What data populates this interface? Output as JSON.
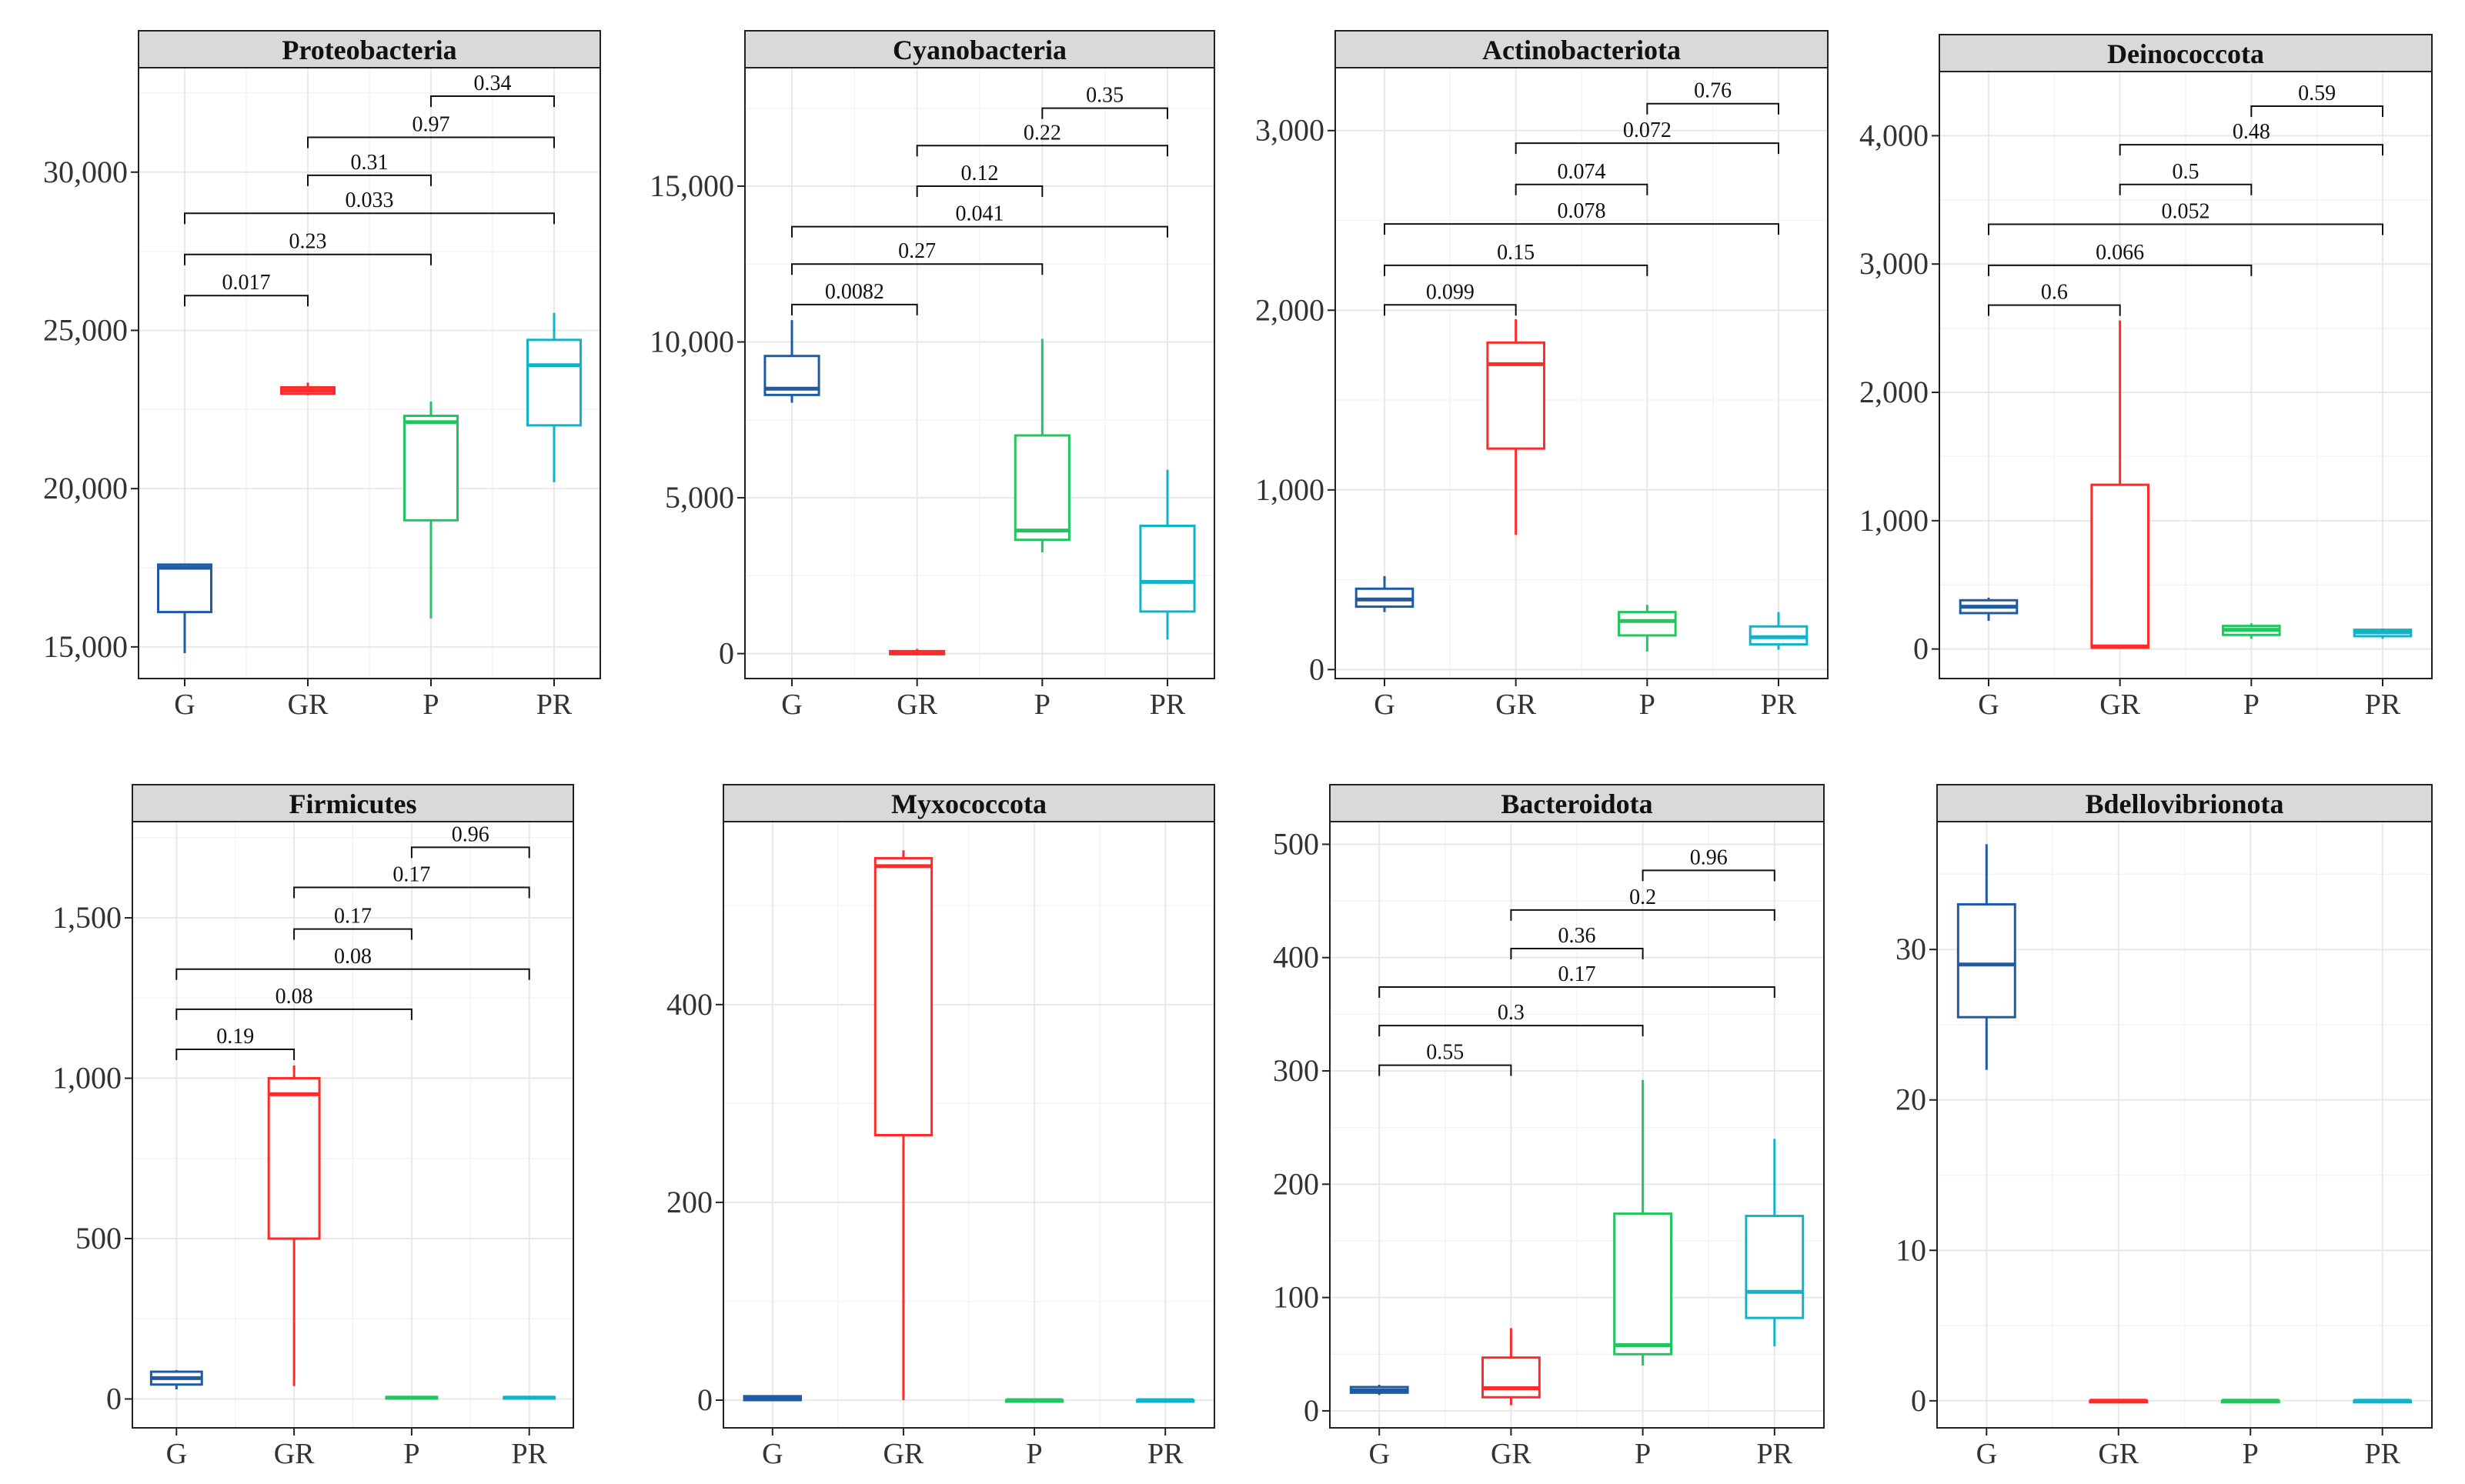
{
  "figure": {
    "columns": 4,
    "rows": 2
  },
  "colors": {
    "G": "#1f5aa6",
    "GR": "#ff2a2a",
    "P": "#22c55e",
    "PR": "#11b3c8",
    "strip_bg": "#d9d9d9",
    "grid_major": "#e8e8e8",
    "grid_minor": "#f3f3f3",
    "frame": "#222222",
    "bracket": "#111111"
  },
  "chart_data": [
    {
      "type": "box",
      "title": "Proteobacteria",
      "groups": [
        "G",
        "GR",
        "P",
        "PR"
      ],
      "ylim": [
        14000,
        33300
      ],
      "yticks": [
        15000,
        20000,
        25000,
        30000
      ],
      "ytick_labels": [
        "15,000",
        "20,000",
        "25,000",
        "30,000"
      ],
      "boxes": [
        {
          "group": "G",
          "min": 14800,
          "q1": 16100,
          "median": 17500,
          "q3": 17600,
          "max": 17600
        },
        {
          "group": "GR",
          "min": 22950,
          "q1": 23000,
          "median": 23100,
          "q3": 23200,
          "max": 23350
        },
        {
          "group": "P",
          "min": 15900,
          "q1": 19000,
          "median": 22100,
          "q3": 22300,
          "max": 22750
        },
        {
          "group": "PR",
          "min": 20200,
          "q1": 22000,
          "median": 23900,
          "q3": 24700,
          "max": 25550
        }
      ],
      "comparisons": [
        {
          "from": "G",
          "to": "GR",
          "p": "0.017",
          "y": 26100
        },
        {
          "from": "G",
          "to": "P",
          "p": "0.23",
          "y": 27400
        },
        {
          "from": "G",
          "to": "PR",
          "p": "0.033",
          "y": 28700
        },
        {
          "from": "GR",
          "to": "P",
          "p": "0.31",
          "y": 29900
        },
        {
          "from": "GR",
          "to": "PR",
          "p": "0.97",
          "y": 31100
        },
        {
          "from": "P",
          "to": "PR",
          "p": "0.34",
          "y": 32400
        }
      ]
    },
    {
      "type": "box",
      "title": "Cyanobacteria",
      "groups": [
        "G",
        "GR",
        "P",
        "PR"
      ],
      "ylim": [
        -800,
        18800
      ],
      "yticks": [
        0,
        5000,
        10000,
        15000
      ],
      "ytick_labels": [
        "0",
        "5,000",
        "10,000",
        "15,000"
      ],
      "boxes": [
        {
          "group": "G",
          "min": 8050,
          "q1": 8300,
          "median": 8500,
          "q3": 9550,
          "max": 10700
        },
        {
          "group": "GR",
          "min": -50,
          "q1": -20,
          "median": 20,
          "q3": 80,
          "max": 150
        },
        {
          "group": "P",
          "min": 3250,
          "q1": 3650,
          "median": 3950,
          "q3": 7000,
          "max": 10100
        },
        {
          "group": "PR",
          "min": 450,
          "q1": 1350,
          "median": 2300,
          "q3": 4100,
          "max": 5900
        }
      ],
      "comparisons": [
        {
          "from": "G",
          "to": "GR",
          "p": "0.0082",
          "y": 11200
        },
        {
          "from": "G",
          "to": "P",
          "p": "0.27",
          "y": 12500
        },
        {
          "from": "G",
          "to": "PR",
          "p": "0.041",
          "y": 13700
        },
        {
          "from": "GR",
          "to": "P",
          "p": "0.12",
          "y": 15000
        },
        {
          "from": "GR",
          "to": "PR",
          "p": "0.22",
          "y": 16300
        },
        {
          "from": "P",
          "to": "PR",
          "p": "0.35",
          "y": 17500
        }
      ]
    },
    {
      "type": "box",
      "title": "Actinobacteriota",
      "groups": [
        "G",
        "GR",
        "P",
        "PR"
      ],
      "ylim": [
        -50,
        3350
      ],
      "yticks": [
        0,
        1000,
        2000,
        3000
      ],
      "ytick_labels": [
        "0",
        "1,000",
        "2,000",
        "3,000"
      ],
      "boxes": [
        {
          "group": "G",
          "min": 320,
          "q1": 350,
          "median": 390,
          "q3": 450,
          "max": 520
        },
        {
          "group": "GR",
          "min": 750,
          "q1": 1230,
          "median": 1700,
          "q3": 1820,
          "max": 1950
        },
        {
          "group": "P",
          "min": 100,
          "q1": 190,
          "median": 270,
          "q3": 320,
          "max": 360
        },
        {
          "group": "PR",
          "min": 110,
          "q1": 140,
          "median": 180,
          "q3": 240,
          "max": 320
        }
      ],
      "comparisons": [
        {
          "from": "G",
          "to": "GR",
          "p": "0.099",
          "y": 2030
        },
        {
          "from": "G",
          "to": "P",
          "p": "0.15",
          "y": 2250
        },
        {
          "from": "G",
          "to": "PR",
          "p": "0.078",
          "y": 2480
        },
        {
          "from": "GR",
          "to": "P",
          "p": "0.074",
          "y": 2700
        },
        {
          "from": "GR",
          "to": "PR",
          "p": "0.072",
          "y": 2930
        },
        {
          "from": "P",
          "to": "PR",
          "p": "0.76",
          "y": 3150
        }
      ]
    },
    {
      "type": "box",
      "title": "Deinococcota",
      "groups": [
        "G",
        "GR",
        "P",
        "PR"
      ],
      "ylim": [
        -230,
        4500
      ],
      "yticks": [
        0,
        1000,
        2000,
        3000,
        4000
      ],
      "ytick_labels": [
        "0",
        "1,000",
        "2,000",
        "3,000",
        "4,000"
      ],
      "boxes": [
        {
          "group": "G",
          "min": 220,
          "q1": 280,
          "median": 330,
          "q3": 380,
          "max": 400
        },
        {
          "group": "GR",
          "min": 0,
          "q1": 10,
          "median": 20,
          "q3": 1280,
          "max": 2560
        },
        {
          "group": "P",
          "min": 80,
          "q1": 110,
          "median": 150,
          "q3": 180,
          "max": 200
        },
        {
          "group": "PR",
          "min": 80,
          "q1": 100,
          "median": 130,
          "q3": 150,
          "max": 160
        }
      ],
      "comparisons": [
        {
          "from": "G",
          "to": "GR",
          "p": "0.6",
          "y": 2680
        },
        {
          "from": "G",
          "to": "P",
          "p": "0.066",
          "y": 2990
        },
        {
          "from": "G",
          "to": "PR",
          "p": "0.052",
          "y": 3310
        },
        {
          "from": "GR",
          "to": "P",
          "p": "0.5",
          "y": 3620
        },
        {
          "from": "GR",
          "to": "PR",
          "p": "0.48",
          "y": 3930
        },
        {
          "from": "P",
          "to": "PR",
          "p": "0.59",
          "y": 4230
        }
      ]
    },
    {
      "type": "box",
      "title": "Firmicutes",
      "groups": [
        "G",
        "GR",
        "P",
        "PR"
      ],
      "ylim": [
        -90,
        1800
      ],
      "yticks": [
        0,
        500,
        1000,
        1500
      ],
      "ytick_labels": [
        "0",
        "500",
        "1,000",
        "1,500"
      ],
      "boxes": [
        {
          "group": "G",
          "min": 30,
          "q1": 45,
          "median": 65,
          "q3": 85,
          "max": 90
        },
        {
          "group": "GR",
          "min": 40,
          "q1": 500,
          "median": 950,
          "q3": 1000,
          "max": 1040
        },
        {
          "group": "P",
          "min": 0,
          "q1": 2,
          "median": 4,
          "q3": 6,
          "max": 8
        },
        {
          "group": "PR",
          "min": 0,
          "q1": 2,
          "median": 4,
          "q3": 6,
          "max": 8
        }
      ],
      "comparisons": [
        {
          "from": "G",
          "to": "GR",
          "p": "0.19",
          "y": 1090
        },
        {
          "from": "G",
          "to": "P",
          "p": "0.08",
          "y": 1215
        },
        {
          "from": "G",
          "to": "PR",
          "p": "0.08",
          "y": 1340
        },
        {
          "from": "GR",
          "to": "P",
          "p": "0.17",
          "y": 1465
        },
        {
          "from": "GR",
          "to": "PR",
          "p": "0.17",
          "y": 1595
        },
        {
          "from": "P",
          "to": "PR",
          "p": "0.96",
          "y": 1720
        }
      ]
    },
    {
      "type": "box",
      "title": "Myxococcota",
      "groups": [
        "G",
        "GR",
        "P",
        "PR"
      ],
      "ylim": [
        -28,
        585
      ],
      "yticks": [
        0,
        200,
        400
      ],
      "ytick_labels": [
        "0",
        "200",
        "400"
      ],
      "boxes": [
        {
          "group": "G",
          "min": 0,
          "q1": 0,
          "median": 2,
          "q3": 4,
          "max": 5
        },
        {
          "group": "GR",
          "min": 0,
          "q1": 268,
          "median": 540,
          "q3": 548,
          "max": 556
        },
        {
          "group": "P",
          "min": 0,
          "q1": 0,
          "median": 0,
          "q3": 0,
          "max": 0
        },
        {
          "group": "PR",
          "min": 0,
          "q1": 0,
          "median": 0,
          "q3": 0,
          "max": 0
        }
      ],
      "comparisons": []
    },
    {
      "type": "box",
      "title": "Bacteroidota",
      "groups": [
        "G",
        "GR",
        "P",
        "PR"
      ],
      "ylim": [
        -15,
        520
      ],
      "yticks": [
        0,
        100,
        200,
        300,
        400,
        500
      ],
      "ytick_labels": [
        "0",
        "100",
        "200",
        "300",
        "400",
        "500"
      ],
      "boxes": [
        {
          "group": "G",
          "min": 14,
          "q1": 16,
          "median": 18,
          "q3": 21,
          "max": 23
        },
        {
          "group": "GR",
          "min": 5,
          "q1": 12,
          "median": 20,
          "q3": 47,
          "max": 73
        },
        {
          "group": "P",
          "min": 40,
          "q1": 50,
          "median": 58,
          "q3": 174,
          "max": 292
        },
        {
          "group": "PR",
          "min": 57,
          "q1": 82,
          "median": 105,
          "q3": 172,
          "max": 240
        }
      ],
      "comparisons": [
        {
          "from": "G",
          "to": "GR",
          "p": "0.55",
          "y": 305
        },
        {
          "from": "G",
          "to": "P",
          "p": "0.3",
          "y": 340
        },
        {
          "from": "G",
          "to": "PR",
          "p": "0.17",
          "y": 374
        },
        {
          "from": "GR",
          "to": "P",
          "p": "0.36",
          "y": 408
        },
        {
          "from": "GR",
          "to": "PR",
          "p": "0.2",
          "y": 442
        },
        {
          "from": "P",
          "to": "PR",
          "p": "0.96",
          "y": 477
        }
      ]
    },
    {
      "type": "box",
      "title": "Bdellovibrionota",
      "groups": [
        "G",
        "GR",
        "P",
        "PR"
      ],
      "ylim": [
        -1.8,
        38.5
      ],
      "yticks": [
        0,
        10,
        20,
        30
      ],
      "ytick_labels": [
        "0",
        "10",
        "20",
        "30"
      ],
      "boxes": [
        {
          "group": "G",
          "min": 22,
          "q1": 25.5,
          "median": 29,
          "q3": 33,
          "max": 37
        },
        {
          "group": "GR",
          "min": 0,
          "q1": 0,
          "median": 0,
          "q3": 0,
          "max": 0
        },
        {
          "group": "P",
          "min": 0,
          "q1": 0,
          "median": 0,
          "q3": 0,
          "max": 0
        },
        {
          "group": "PR",
          "min": 0,
          "q1": 0,
          "median": 0,
          "q3": 0,
          "max": 0
        }
      ],
      "comparisons": []
    }
  ]
}
